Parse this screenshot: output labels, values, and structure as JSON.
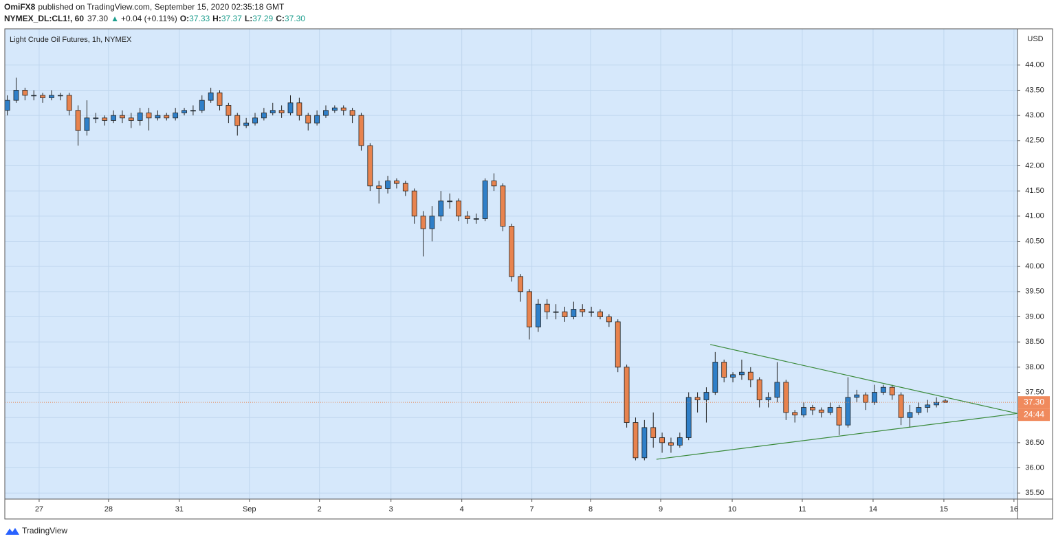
{
  "header": {
    "author": "OmiFX8",
    "published": "published on TradingView.com, September 15, 2020 02:35:18 GMT",
    "symbol": "NYMEX_DL:CL1!, 60",
    "last": "37.30",
    "arrow": "▲",
    "change": "+0.04 (+0.11%)",
    "ohlc": [
      {
        "label": "O:",
        "value": "37.33"
      },
      {
        "label": "H:",
        "value": "37.37"
      },
      {
        "label": "L:",
        "value": "37.29"
      },
      {
        "label": "C:",
        "value": "37.30"
      }
    ]
  },
  "footer": {
    "brand": "TradingView"
  },
  "chart_data": {
    "type": "candlestick",
    "title": "Light Crude Oil Futures, 1h, NYMEX",
    "y_axis_label": "USD",
    "background": "#d6e8fb",
    "up_color": "#2f7fc8",
    "down_color": "#e8834e",
    "grid": true,
    "x": [
      -0.45,
      -0.325,
      -0.2,
      -0.075,
      0.05,
      0.175,
      0.3,
      0.425,
      0.55,
      0.675,
      0.8,
      0.925,
      1.05,
      1.175,
      1.3,
      1.425,
      1.55,
      1.675,
      1.8,
      1.925,
      2.05,
      2.175,
      2.3,
      2.425,
      2.55,
      2.675,
      2.8,
      2.925,
      3.05,
      3.175,
      3.3,
      3.425,
      3.55,
      3.675,
      3.8,
      3.925,
      4.05,
      4.175,
      4.3,
      4.425,
      4.55,
      4.675,
      4.8,
      4.925,
      5.05,
      5.175,
      5.3,
      5.425,
      5.55,
      5.675,
      5.8,
      5.925,
      6.05,
      6.175,
      6.3,
      6.425,
      6.55,
      6.675,
      6.8,
      6.925,
      7.05,
      7.175,
      7.3,
      7.425,
      7.55,
      7.675,
      7.8,
      7.925,
      8.05,
      8.175,
      8.3,
      8.425,
      8.55,
      8.675,
      8.8,
      8.925,
      9.05,
      9.175,
      9.3,
      9.425,
      9.55,
      9.675,
      9.8,
      9.925,
      10.05,
      10.175,
      10.3,
      10.425,
      10.55,
      10.675,
      10.8,
      10.925,
      11.05,
      11.175,
      11.3,
      11.425,
      11.55,
      11.675,
      11.8,
      11.925,
      12.05,
      12.175,
      12.3,
      12.425,
      12.55,
      12.675,
      12.8
    ],
    "open": [
      43.1,
      43.3,
      43.5,
      43.4,
      43.4,
      43.35,
      43.4,
      43.4,
      43.1,
      42.7,
      42.95,
      42.95,
      42.9,
      43.0,
      42.95,
      42.9,
      43.05,
      42.95,
      43.0,
      42.95,
      43.05,
      43.1,
      43.1,
      43.3,
      43.45,
      43.2,
      43.0,
      42.8,
      42.85,
      42.95,
      43.05,
      43.1,
      43.05,
      43.25,
      43.0,
      42.85,
      43.0,
      43.1,
      43.15,
      43.1,
      43.0,
      42.4,
      41.6,
      41.55,
      41.7,
      41.65,
      41.5,
      41.0,
      40.75,
      41.0,
      41.3,
      41.3,
      41.0,
      40.95,
      40.95,
      41.7,
      41.6,
      40.8,
      39.8,
      39.5,
      38.8,
      39.25,
      39.1,
      39.1,
      39.0,
      39.15,
      39.1,
      39.1,
      39.0,
      38.9,
      38.0,
      36.9,
      36.2,
      36.8,
      36.6,
      36.5,
      36.45,
      36.6,
      37.4,
      37.35,
      37.5,
      38.1,
      37.8,
      37.85,
      37.9,
      37.75,
      37.35,
      37.4,
      37.7,
      37.1,
      37.05,
      37.2,
      37.15,
      37.1,
      37.2,
      36.85,
      37.4,
      37.45,
      37.3,
      37.5,
      37.6,
      37.45,
      37.0,
      37.1,
      37.2,
      37.25,
      37.33
    ],
    "high": [
      43.4,
      43.75,
      43.55,
      43.5,
      43.45,
      43.5,
      43.45,
      43.45,
      43.2,
      43.3,
      43.05,
      43.0,
      43.1,
      43.1,
      43.05,
      43.15,
      43.15,
      43.1,
      43.05,
      43.15,
      43.15,
      43.2,
      43.4,
      43.55,
      43.5,
      43.25,
      43.05,
      42.95,
      43.05,
      43.15,
      43.25,
      43.2,
      43.4,
      43.35,
      43.05,
      43.1,
      43.2,
      43.2,
      43.2,
      43.15,
      43.05,
      42.45,
      41.7,
      41.8,
      41.75,
      41.7,
      41.55,
      41.1,
      41.2,
      41.5,
      41.45,
      41.35,
      41.1,
      41.05,
      41.75,
      41.85,
      41.65,
      40.85,
      39.85,
      39.55,
      39.35,
      39.35,
      39.25,
      39.2,
      39.3,
      39.25,
      39.2,
      39.15,
      39.05,
      38.95,
      38.05,
      37.0,
      36.95,
      37.1,
      36.7,
      36.6,
      36.7,
      37.5,
      37.5,
      37.6,
      38.3,
      38.15,
      37.9,
      38.15,
      38.0,
      37.8,
      37.5,
      38.1,
      37.75,
      37.15,
      37.3,
      37.25,
      37.2,
      37.3,
      37.25,
      37.8,
      37.55,
      37.5,
      37.65,
      37.65,
      37.65,
      37.5,
      37.25,
      37.3,
      37.35,
      37.4,
      37.37
    ],
    "low": [
      43.0,
      43.25,
      43.3,
      43.3,
      43.25,
      43.3,
      43.3,
      43.0,
      42.4,
      42.6,
      42.85,
      42.8,
      42.85,
      42.85,
      42.75,
      42.8,
      42.7,
      42.9,
      42.9,
      42.9,
      43.0,
      43.0,
      43.05,
      43.25,
      43.1,
      42.85,
      42.6,
      42.75,
      42.8,
      42.9,
      43.0,
      42.95,
      43.0,
      42.9,
      42.7,
      42.8,
      42.95,
      43.05,
      43.0,
      42.85,
      42.3,
      41.5,
      41.25,
      41.45,
      41.55,
      41.4,
      40.85,
      40.2,
      40.5,
      40.9,
      41.15,
      40.9,
      40.85,
      40.85,
      40.9,
      41.5,
      40.7,
      39.7,
      39.3,
      38.55,
      38.7,
      38.95,
      38.95,
      38.9,
      38.95,
      39.0,
      39.0,
      38.95,
      38.8,
      37.9,
      36.8,
      36.15,
      36.15,
      36.4,
      36.3,
      36.3,
      36.4,
      36.55,
      37.1,
      36.9,
      37.45,
      37.7,
      37.7,
      37.75,
      37.6,
      37.2,
      37.2,
      37.3,
      36.95,
      36.9,
      37.0,
      37.05,
      37.0,
      37.05,
      36.65,
      36.8,
      37.3,
      37.15,
      37.25,
      37.45,
      37.35,
      36.85,
      36.8,
      37.05,
      37.1,
      37.2,
      37.29
    ],
    "close": [
      43.3,
      43.5,
      43.4,
      43.4,
      43.35,
      43.4,
      43.4,
      43.1,
      42.7,
      42.95,
      42.95,
      42.9,
      43.0,
      42.95,
      42.9,
      43.05,
      42.95,
      43.0,
      42.95,
      43.05,
      43.1,
      43.1,
      43.3,
      43.45,
      43.2,
      43.0,
      42.8,
      42.85,
      42.95,
      43.05,
      43.1,
      43.05,
      43.25,
      43.0,
      42.85,
      43.0,
      43.1,
      43.15,
      43.1,
      43.0,
      42.4,
      41.6,
      41.55,
      41.7,
      41.65,
      41.5,
      41.0,
      40.75,
      41.0,
      41.3,
      41.3,
      41.0,
      40.95,
      40.95,
      41.7,
      41.6,
      40.8,
      39.8,
      39.5,
      38.8,
      39.25,
      39.1,
      39.1,
      39.0,
      39.15,
      39.1,
      39.1,
      39.0,
      38.9,
      38.0,
      36.9,
      36.2,
      36.8,
      36.6,
      36.5,
      36.45,
      36.6,
      37.4,
      37.35,
      37.5,
      38.1,
      37.8,
      37.85,
      37.9,
      37.75,
      37.35,
      37.4,
      37.7,
      37.1,
      37.05,
      37.2,
      37.15,
      37.1,
      37.2,
      36.85,
      37.4,
      37.45,
      37.3,
      37.5,
      37.6,
      37.45,
      37.0,
      37.1,
      37.2,
      37.25,
      37.3,
      37.3
    ],
    "xlim": [
      -0.485,
      13.82
    ],
    "xticks": [
      {
        "value": 0,
        "label": "27"
      },
      {
        "value": 0.98,
        "label": "28"
      },
      {
        "value": 1.98,
        "label": "31"
      },
      {
        "value": 2.97,
        "label": "Sep"
      },
      {
        "value": 3.96,
        "label": "2"
      },
      {
        "value": 4.97,
        "label": "3"
      },
      {
        "value": 5.97,
        "label": "4"
      },
      {
        "value": 6.96,
        "label": "7"
      },
      {
        "value": 7.79,
        "label": "8"
      },
      {
        "value": 8.78,
        "label": "9"
      },
      {
        "value": 9.79,
        "label": "10"
      },
      {
        "value": 10.78,
        "label": "11"
      },
      {
        "value": 11.78,
        "label": "14"
      },
      {
        "value": 12.78,
        "label": "15"
      },
      {
        "value": 13.77,
        "label": "16"
      }
    ],
    "ylim": [
      35.38,
      44.72
    ],
    "yticks": [
      {
        "value": 35.5,
        "label": "35.50"
      },
      {
        "value": 36,
        "label": "36.00"
      },
      {
        "value": 36.5,
        "label": "36.50"
      },
      {
        "value": 37,
        "label": "37.00"
      },
      {
        "value": 37.5,
        "label": "37.50"
      },
      {
        "value": 38,
        "label": "38.00"
      },
      {
        "value": 38.5,
        "label": "38.50"
      },
      {
        "value": 39,
        "label": "39.00"
      },
      {
        "value": 39.5,
        "label": "39.50"
      },
      {
        "value": 40,
        "label": "40.00"
      },
      {
        "value": 40.5,
        "label": "40.50"
      },
      {
        "value": 41,
        "label": "41.00"
      },
      {
        "value": 41.5,
        "label": "41.50"
      },
      {
        "value": 42,
        "label": "42.00"
      },
      {
        "value": 42.5,
        "label": "42.50"
      },
      {
        "value": 43,
        "label": "43.00"
      },
      {
        "value": 43.5,
        "label": "43.50"
      },
      {
        "value": 44,
        "label": "44.00"
      }
    ],
    "last_price": 37.3,
    "last_price_label": "37.30",
    "countdown": "24:44",
    "trendline_color": "#3a8a3a",
    "trendlines": [
      {
        "x": [
          9.48,
          13.82
        ],
        "y": [
          38.45,
          37.08
        ]
      },
      {
        "x": [
          8.72,
          13.82
        ],
        "y": [
          36.17,
          37.08
        ]
      }
    ]
  }
}
